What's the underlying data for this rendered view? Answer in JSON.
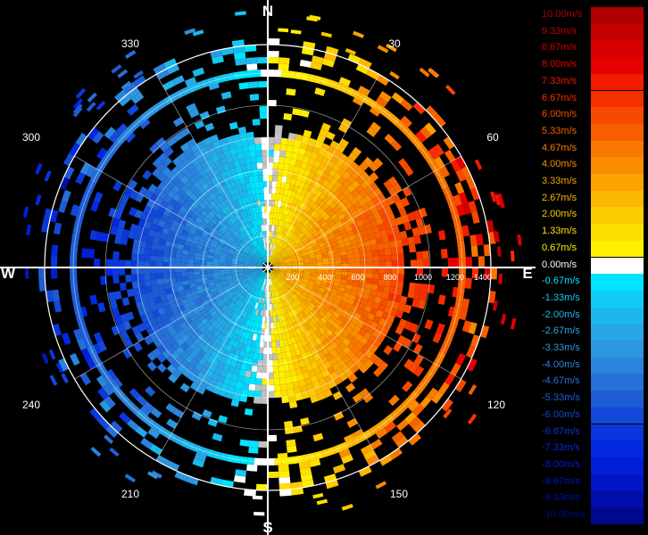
{
  "compass": {
    "north": "N",
    "south": "S",
    "east": "E",
    "west": "W"
  },
  "bearings": [
    "30",
    "60",
    "120",
    "150",
    "210",
    "240",
    "300",
    "330"
  ],
  "range_labels": [
    "200",
    "400",
    "600",
    "800",
    "1000",
    "1200",
    "1400"
  ],
  "legend": {
    "entries": [
      {
        "label": "10.00m/s",
        "color": "#b00000"
      },
      {
        "label": "9.33m/s",
        "color": "#c40000"
      },
      {
        "label": "8.67m/s",
        "color": "#d60000"
      },
      {
        "label": "8.00m/s",
        "color": "#e60000"
      },
      {
        "label": "7.33m/s",
        "color": "#f21a00"
      },
      {
        "label": "6.67m/s",
        "color": "#f53000"
      },
      {
        "label": "6.00m/s",
        "color": "#f54a00"
      },
      {
        "label": "5.33m/s",
        "color": "#f76000"
      },
      {
        "label": "4.67m/s",
        "color": "#f87800"
      },
      {
        "label": "4.00m/s",
        "color": "#fa8c00"
      },
      {
        "label": "3.33m/s",
        "color": "#fba300"
      },
      {
        "label": "2.67m/s",
        "color": "#fcb800"
      },
      {
        "label": "2.00m/s",
        "color": "#fdcc00"
      },
      {
        "label": "1.33m/s",
        "color": "#fee000"
      },
      {
        "label": "0.67m/s",
        "color": "#fff000"
      },
      {
        "label": "0.00m/s",
        "color": "#ffffff"
      },
      {
        "label": "-0.67m/s",
        "color": "#00e4ff"
      },
      {
        "label": "-1.33m/s",
        "color": "#10ccf4"
      },
      {
        "label": "-2.00m/s",
        "color": "#1cb8ec"
      },
      {
        "label": "-2.67m/s",
        "color": "#28a6e6"
      },
      {
        "label": "-3.33m/s",
        "color": "#2c96e0"
      },
      {
        "label": "-4.00m/s",
        "color": "#2a84dc"
      },
      {
        "label": "-4.67m/s",
        "color": "#2670d8"
      },
      {
        "label": "-5.33m/s",
        "color": "#1e5cd6"
      },
      {
        "label": "-6.00m/s",
        "color": "#1448d8"
      },
      {
        "label": "-6.67m/s",
        "color": "#0a36dc"
      },
      {
        "label": "-7.33m/s",
        "color": "#0428e0"
      },
      {
        "label": "-8.00m/s",
        "color": "#001ed8"
      },
      {
        "label": "-8.67m/s",
        "color": "#0016c4"
      },
      {
        "label": "-9.33m/s",
        "color": "#000eac"
      },
      {
        "label": "-10.00m/s",
        "color": "#000890"
      }
    ]
  }
}
